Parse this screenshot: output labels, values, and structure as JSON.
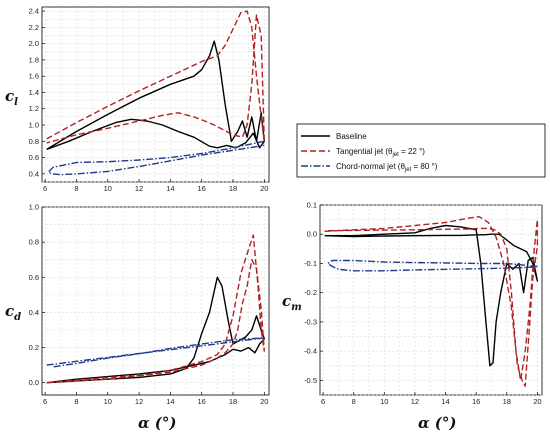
{
  "legend": {
    "items": [
      {
        "label": "Baseline",
        "color": "#000000",
        "dash": "solid"
      },
      {
        "label": "Tangential jet",
        "theta_sub": "jet",
        "theta_value": " = 22 °)",
        "color": "#b22222",
        "dash": "dashed"
      },
      {
        "label": "Chord-normal jet",
        "theta_sub": "jet",
        "theta_value": " = 80 °)",
        "color": "#1f3b8c",
        "dash": "dashdot"
      }
    ]
  },
  "axis_labels": {
    "cl": {
      "main": "c",
      "sub": "l"
    },
    "cd": {
      "main": "c",
      "sub": "d"
    },
    "cm": {
      "main": "c",
      "sub": "m"
    },
    "alpha_left": "α (°)",
    "alpha_right": "α (°)"
  },
  "chart_data": [
    {
      "type": "line",
      "id": "cl",
      "xlim": [
        5.8,
        20.3
      ],
      "ylim": [
        0.3,
        2.45
      ],
      "xticks": [
        6,
        8,
        10,
        12,
        14,
        16,
        18,
        20
      ],
      "yticks": [
        0.4,
        0.6,
        0.8,
        1.0,
        1.2,
        1.4,
        1.6,
        1.8,
        2.0,
        2.2,
        2.4
      ],
      "grid": true,
      "series": [
        {
          "name": "Baseline",
          "color": "#000000",
          "dash": "solid",
          "x": [
            6.1,
            8,
            10,
            12,
            14,
            15.5,
            16,
            16.5,
            16.8,
            17.1,
            17.5,
            17.9,
            18.3,
            18.6,
            18.9,
            19.2,
            19.5,
            19.8,
            20.0,
            19.7,
            19.3,
            18.8,
            18.2,
            17.6,
            17.0,
            16.5,
            15.5,
            14.5,
            13.5,
            12.5,
            11.5,
            10.5,
            9,
            7.5,
            6.1
          ],
          "y": [
            0.7,
            0.92,
            1.13,
            1.33,
            1.5,
            1.6,
            1.68,
            1.85,
            2.03,
            1.8,
            1.25,
            0.8,
            0.92,
            1.05,
            0.85,
            1.1,
            0.8,
            1.15,
            0.8,
            0.72,
            0.9,
            0.78,
            0.72,
            0.75,
            0.72,
            0.74,
            0.85,
            0.92,
            1.0,
            1.05,
            1.07,
            1.03,
            0.92,
            0.8,
            0.7
          ]
        },
        {
          "name": "Tangential jet",
          "color": "#b22222",
          "dash": "dashed",
          "x": [
            6.1,
            8,
            10,
            12,
            14,
            16,
            17,
            17.5,
            18,
            18.5,
            18.9,
            19.2,
            19.5,
            19.8,
            20.0,
            19.8,
            19.5,
            19.2,
            18.9,
            18.6,
            18.2,
            17.8,
            17.3,
            16.8,
            16.2,
            15.5,
            14.5,
            13.5,
            12,
            10,
            8,
            6.1
          ],
          "y": [
            0.83,
            1.03,
            1.23,
            1.42,
            1.6,
            1.78,
            1.85,
            1.98,
            2.18,
            2.38,
            2.4,
            2.2,
            1.6,
            1.1,
            0.8,
            2.1,
            2.35,
            1.5,
            1.0,
            0.85,
            0.87,
            0.9,
            0.95,
            1.0,
            1.05,
            1.1,
            1.15,
            1.12,
            1.05,
            0.96,
            0.88,
            0.78
          ]
        },
        {
          "name": "Chord-normal jet",
          "color": "#1f3b8c",
          "dash": "dashdot",
          "x": [
            20.0,
            18,
            16,
            14,
            12,
            10,
            8,
            6.5,
            6.2,
            6.5,
            7,
            8,
            10,
            12,
            14,
            16,
            18,
            20.0
          ],
          "y": [
            0.8,
            0.72,
            0.65,
            0.6,
            0.57,
            0.55,
            0.54,
            0.48,
            0.42,
            0.4,
            0.39,
            0.4,
            0.43,
            0.49,
            0.56,
            0.63,
            0.69,
            0.75
          ]
        }
      ]
    },
    {
      "type": "line",
      "id": "cd",
      "xlim": [
        5.8,
        20.3
      ],
      "ylim": [
        -0.07,
        1.0
      ],
      "xticks": [
        6,
        8,
        10,
        12,
        14,
        16,
        18,
        20
      ],
      "yticks": [
        0.0,
        0.2,
        0.4,
        0.6,
        0.8,
        1.0
      ],
      "grid": true,
      "series": [
        {
          "name": "Baseline",
          "color": "#000000",
          "dash": "solid",
          "x": [
            6.1,
            8,
            10,
            12,
            14,
            15,
            15.5,
            16,
            16.5,
            17,
            17.3,
            17.7,
            18,
            18.4,
            18.8,
            19.2,
            19.5,
            19.8,
            20.0,
            19.7,
            19.4,
            19.0,
            18.5,
            18.0,
            17.5,
            17.0,
            16.5,
            16,
            15,
            14,
            12,
            10,
            8,
            6.1
          ],
          "y": [
            0.0,
            0.01,
            0.02,
            0.03,
            0.05,
            0.08,
            0.14,
            0.28,
            0.4,
            0.6,
            0.55,
            0.35,
            0.22,
            0.24,
            0.26,
            0.3,
            0.38,
            0.3,
            0.25,
            0.22,
            0.17,
            0.2,
            0.18,
            0.19,
            0.16,
            0.14,
            0.12,
            0.11,
            0.09,
            0.07,
            0.05,
            0.035,
            0.02,
            0.0
          ]
        },
        {
          "name": "Tangential jet",
          "color": "#b22222",
          "dash": "dashed",
          "x": [
            6.1,
            8,
            10,
            12,
            14,
            16,
            17,
            17.5,
            18,
            18.5,
            19,
            19.3,
            19.6,
            19.8,
            20.0,
            19.8,
            19.5,
            19.2,
            18.9,
            18.6,
            18.3,
            18.0,
            17.5,
            17,
            16,
            14,
            12,
            10,
            8,
            6.1
          ],
          "y": [
            0.0,
            0.01,
            0.02,
            0.04,
            0.07,
            0.12,
            0.16,
            0.22,
            0.38,
            0.62,
            0.76,
            0.84,
            0.55,
            0.3,
            0.18,
            0.42,
            0.65,
            0.7,
            0.55,
            0.45,
            0.3,
            0.22,
            0.17,
            0.14,
            0.1,
            0.06,
            0.04,
            0.03,
            0.015,
            0.0
          ]
        },
        {
          "name": "Chord-normal jet",
          "color": "#1f3b8c",
          "dash": "dashdot",
          "x": [
            6.1,
            8,
            10,
            12,
            14,
            16,
            18,
            20.0,
            18,
            16,
            14,
            12,
            10,
            8,
            6.5
          ],
          "y": [
            0.1,
            0.122,
            0.144,
            0.166,
            0.188,
            0.21,
            0.232,
            0.255,
            0.245,
            0.22,
            0.195,
            0.165,
            0.14,
            0.11,
            0.09
          ]
        }
      ]
    },
    {
      "type": "line",
      "id": "cm",
      "xlim": [
        5.8,
        20.3
      ],
      "ylim": [
        -0.55,
        0.1
      ],
      "xticks": [
        6,
        8,
        10,
        12,
        14,
        16,
        18,
        20
      ],
      "yticks": [
        0.1,
        0.0,
        -0.1,
        -0.2,
        -0.3,
        -0.4,
        -0.5
      ],
      "grid": true,
      "series": [
        {
          "name": "Baseline",
          "color": "#000000",
          "dash": "solid",
          "x": [
            6.1,
            8,
            10,
            12,
            13,
            14,
            15,
            16,
            16.3,
            16.6,
            16.9,
            17.1,
            17.3,
            17.6,
            18,
            18.4,
            18.8,
            19.1,
            19.4,
            19.7,
            20.0,
            19.7,
            19.3,
            18.9,
            18.5,
            18.0,
            17.5,
            17.0,
            16.5,
            16,
            15,
            14,
            12,
            10,
            8,
            6.1
          ],
          "y": [
            -0.005,
            -0.005,
            0.0,
            0.005,
            0.02,
            0.03,
            0.025,
            0.015,
            -0.1,
            -0.28,
            -0.45,
            -0.44,
            -0.3,
            -0.2,
            -0.1,
            -0.12,
            -0.1,
            -0.2,
            -0.09,
            -0.08,
            -0.16,
            -0.1,
            -0.06,
            -0.05,
            -0.04,
            -0.02,
            0.0,
            0.0,
            -0.002,
            -0.002,
            -0.004,
            -0.004,
            -0.005,
            -0.006,
            -0.008,
            -0.005
          ]
        },
        {
          "name": "Tangential jet",
          "color": "#b22222",
          "dash": "dashed",
          "x": [
            6.1,
            8,
            10,
            12,
            14,
            15.5,
            16.2,
            16.8,
            17.3,
            17.8,
            18.3,
            18.7,
            19.0,
            19.2,
            19.5,
            19.7,
            20.0,
            20.0,
            19.8,
            19.5,
            19.2,
            18.9,
            18.6,
            18.3,
            18.0,
            17.6,
            17.2,
            16.8,
            16.3,
            15.5,
            14,
            12,
            10,
            8,
            6.1
          ],
          "y": [
            0.01,
            0.015,
            0.02,
            0.03,
            0.04,
            0.055,
            0.06,
            0.04,
            -0.01,
            -0.1,
            -0.25,
            -0.45,
            -0.5,
            -0.52,
            -0.3,
            -0.15,
            -0.04,
            0.05,
            -0.05,
            -0.25,
            -0.4,
            -0.5,
            -0.4,
            -0.2,
            -0.05,
            0.0,
            0.015,
            0.02,
            0.02,
            0.018,
            0.017,
            0.015,
            0.014,
            0.013,
            0.012
          ]
        },
        {
          "name": "Chord-normal jet",
          "color": "#1f3b8c",
          "dash": "dashdot",
          "x": [
            20.0,
            18,
            16,
            14,
            12,
            10,
            8,
            6.6,
            6.3,
            6.6,
            7,
            8,
            10,
            12,
            14,
            16,
            18,
            20.0
          ],
          "y": [
            -0.11,
            -0.1,
            -0.1,
            -0.098,
            -0.097,
            -0.095,
            -0.09,
            -0.09,
            -0.1,
            -0.11,
            -0.12,
            -0.125,
            -0.125,
            -0.122,
            -0.12,
            -0.118,
            -0.116,
            -0.112
          ]
        }
      ]
    }
  ]
}
